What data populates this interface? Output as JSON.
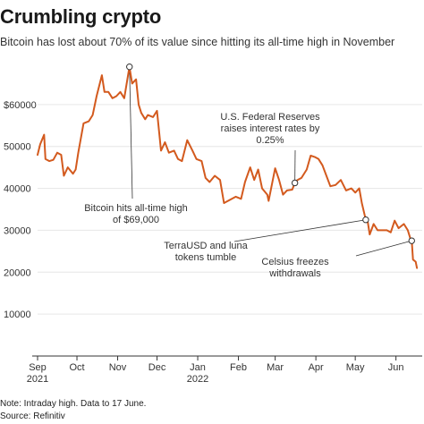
{
  "title": "Crumbling crypto",
  "subtitle": "Bitcoin has lost about 70% of its value since hitting its all-time high in November",
  "note": "Note: Intraday high. Data to 17 June.",
  "source": "Source: Refinitiv",
  "colors": {
    "line": "#d35a1e",
    "text": "#333333",
    "grid": "#e6e6e6"
  },
  "chart_data": {
    "type": "line",
    "ylim": [
      0,
      70000
    ],
    "yticks": [
      "10000",
      "20000",
      "30000",
      "40000",
      "50000",
      "$60000"
    ],
    "ytick_values": [
      10000,
      20000,
      30000,
      40000,
      50000,
      60000
    ],
    "x_start": "2021-09-01",
    "x_end": "2022-06-21",
    "xticks": [
      {
        "date": "2021-09-01",
        "label": "Sep",
        "sub": "2021"
      },
      {
        "date": "2021-10-01",
        "label": "Oct",
        "sub": ""
      },
      {
        "date": "2021-11-01",
        "label": "Nov",
        "sub": ""
      },
      {
        "date": "2021-12-01",
        "label": "Dec",
        "sub": ""
      },
      {
        "date": "2022-01-01",
        "label": "Jan",
        "sub": "2022"
      },
      {
        "date": "2022-02-01",
        "label": "Feb",
        "sub": ""
      },
      {
        "date": "2022-03-01",
        "label": "Mar",
        "sub": ""
      },
      {
        "date": "2022-04-01",
        "label": "Apr",
        "sub": ""
      },
      {
        "date": "2022-05-01",
        "label": "May",
        "sub": ""
      },
      {
        "date": "2022-06-01",
        "label": "Jun",
        "sub": ""
      }
    ],
    "series": [
      {
        "values": [
          [
            "2021-09-01",
            48000
          ],
          [
            "2021-09-03",
            50500
          ],
          [
            "2021-09-06",
            52800
          ],
          [
            "2021-09-07",
            47000
          ],
          [
            "2021-09-10",
            46500
          ],
          [
            "2021-09-13",
            46800
          ],
          [
            "2021-09-16",
            48500
          ],
          [
            "2021-09-19",
            48000
          ],
          [
            "2021-09-21",
            43000
          ],
          [
            "2021-09-24",
            45000
          ],
          [
            "2021-09-28",
            43500
          ],
          [
            "2021-09-30",
            44500
          ],
          [
            "2021-10-02",
            48500
          ],
          [
            "2021-10-06",
            55500
          ],
          [
            "2021-10-10",
            56000
          ],
          [
            "2021-10-13",
            57500
          ],
          [
            "2021-10-16",
            62000
          ],
          [
            "2021-10-20",
            67000
          ],
          [
            "2021-10-22",
            63000
          ],
          [
            "2021-10-25",
            63000
          ],
          [
            "2021-10-28",
            61500
          ],
          [
            "2021-10-31",
            62000
          ],
          [
            "2021-11-03",
            63000
          ],
          [
            "2021-11-06",
            61500
          ],
          [
            "2021-11-10",
            69000
          ],
          [
            "2021-11-12",
            65000
          ],
          [
            "2021-11-15",
            66000
          ],
          [
            "2021-11-17",
            60000
          ],
          [
            "2021-11-19",
            58000
          ],
          [
            "2021-11-22",
            56500
          ],
          [
            "2021-11-24",
            57500
          ],
          [
            "2021-11-28",
            57000
          ],
          [
            "2021-12-01",
            58500
          ],
          [
            "2021-12-04",
            49000
          ],
          [
            "2021-12-07",
            51000
          ],
          [
            "2021-12-10",
            48500
          ],
          [
            "2021-12-14",
            49000
          ],
          [
            "2021-12-17",
            47000
          ],
          [
            "2021-12-20",
            46500
          ],
          [
            "2021-12-24",
            51500
          ],
          [
            "2021-12-28",
            49000
          ],
          [
            "2021-12-31",
            47000
          ],
          [
            "2022-01-04",
            46500
          ],
          [
            "2022-01-07",
            42500
          ],
          [
            "2022-01-10",
            41500
          ],
          [
            "2022-01-14",
            43000
          ],
          [
            "2022-01-18",
            42000
          ],
          [
            "2022-01-21",
            36500
          ],
          [
            "2022-01-24",
            37000
          ],
          [
            "2022-01-27",
            37500
          ],
          [
            "2022-01-30",
            38000
          ],
          [
            "2022-02-03",
            37500
          ],
          [
            "2022-02-06",
            41500
          ],
          [
            "2022-02-10",
            45000
          ],
          [
            "2022-02-13",
            42000
          ],
          [
            "2022-02-16",
            44500
          ],
          [
            "2022-02-19",
            40000
          ],
          [
            "2022-02-23",
            38500
          ],
          [
            "2022-02-24",
            37000
          ],
          [
            "2022-03-01",
            44800
          ],
          [
            "2022-03-04",
            42000
          ],
          [
            "2022-03-07",
            38500
          ],
          [
            "2022-03-10",
            39500
          ],
          [
            "2022-03-14",
            39700
          ],
          [
            "2022-03-16",
            41300
          ],
          [
            "2022-03-18",
            42000
          ],
          [
            "2022-03-21",
            42500
          ],
          [
            "2022-03-25",
            44500
          ],
          [
            "2022-03-28",
            47800
          ],
          [
            "2022-03-31",
            47500
          ],
          [
            "2022-04-03",
            47000
          ],
          [
            "2022-04-06",
            45500
          ],
          [
            "2022-04-09",
            43000
          ],
          [
            "2022-04-12",
            40500
          ],
          [
            "2022-04-16",
            40800
          ],
          [
            "2022-04-20",
            42000
          ],
          [
            "2022-04-24",
            39500
          ],
          [
            "2022-04-28",
            40000
          ],
          [
            "2022-05-01",
            39000
          ],
          [
            "2022-05-04",
            40000
          ],
          [
            "2022-05-06",
            36500
          ],
          [
            "2022-05-09",
            32500
          ],
          [
            "2022-05-10",
            33000
          ],
          [
            "2022-05-12",
            29000
          ],
          [
            "2022-05-15",
            31500
          ],
          [
            "2022-05-18",
            30000
          ],
          [
            "2022-05-21",
            30000
          ],
          [
            "2022-05-25",
            30000
          ],
          [
            "2022-05-28",
            29500
          ],
          [
            "2022-05-31",
            32300
          ],
          [
            "2022-06-03",
            30500
          ],
          [
            "2022-06-07",
            31500
          ],
          [
            "2022-06-10",
            30000
          ],
          [
            "2022-06-12",
            28000
          ],
          [
            "2022-06-13",
            27500
          ],
          [
            "2022-06-14",
            23000
          ],
          [
            "2022-06-16",
            22500
          ],
          [
            "2022-06-17",
            21000
          ]
        ]
      }
    ],
    "annotations": [
      {
        "id": "ath",
        "date": "2021-11-10",
        "value": 69000,
        "lines": [
          "Bitcoin hits all-time high",
          "of $69,000"
        ]
      },
      {
        "id": "fed",
        "date": "2022-03-16",
        "value": 41300,
        "lines": [
          "U.S. Federal Reserves",
          "raises interest rates by",
          "0.25%"
        ]
      },
      {
        "id": "terra",
        "date": "2022-05-09",
        "value": 32500,
        "lines": [
          "TerraUSD and luna",
          "tokens tumble"
        ]
      },
      {
        "id": "celsius",
        "date": "2022-06-13",
        "value": 27500,
        "lines": [
          "Celsius freezes",
          "withdrawals"
        ]
      }
    ]
  }
}
